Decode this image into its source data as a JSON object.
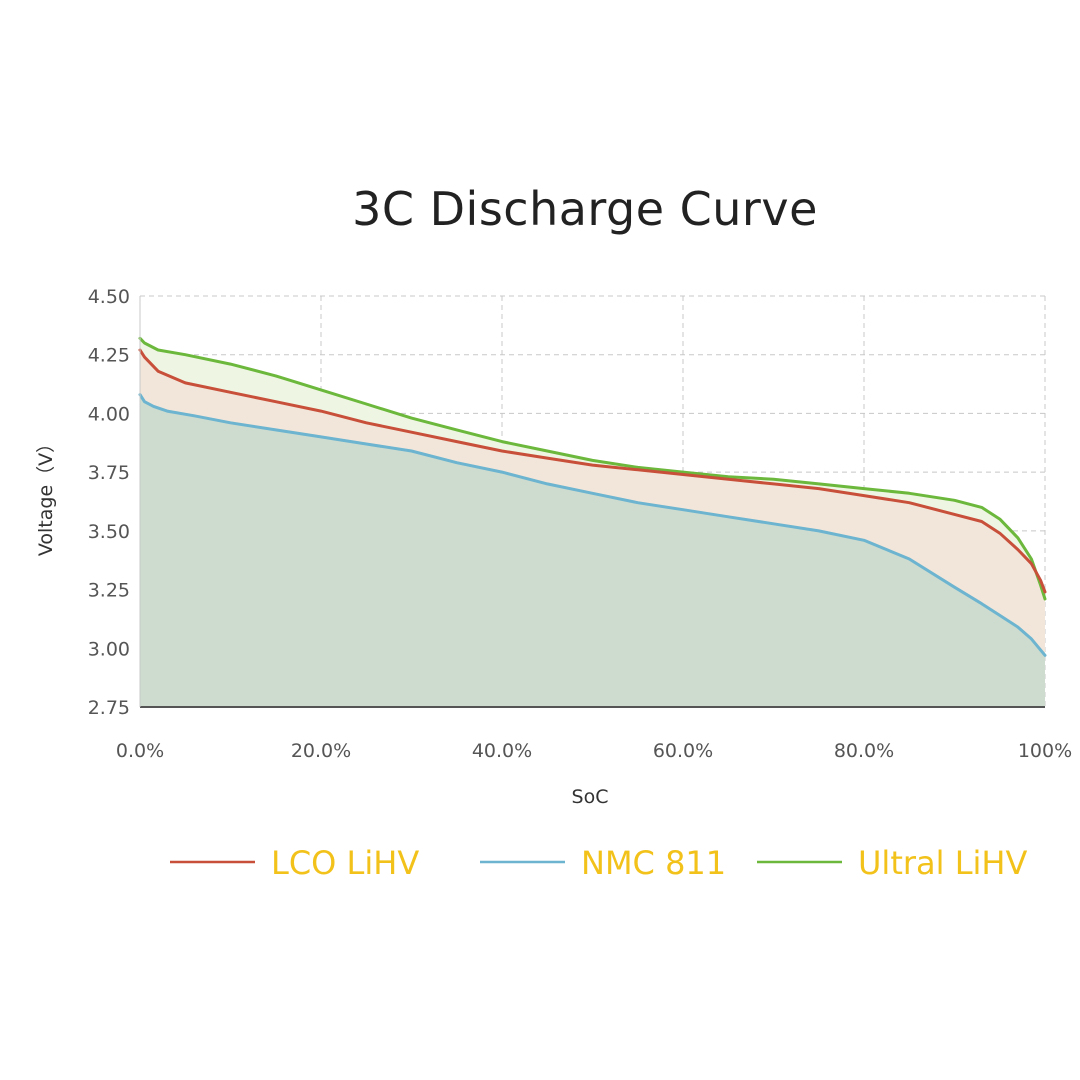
{
  "chart_data": {
    "type": "area",
    "title": "3C Discharge Curve",
    "xlabel": "SoC",
    "ylabel": "Voltage（V）",
    "x_tick_labels": [
      "0.0%",
      "20.0%",
      "40.0%",
      "60.0%",
      "80.0%",
      "100%"
    ],
    "y_tick_labels": [
      "4.50",
      "4.25",
      "4.00",
      "3.75",
      "3.50",
      "3.25",
      "3.00",
      "2.75"
    ],
    "xlim": [
      0,
      100
    ],
    "ylim": [
      2.75,
      4.5
    ],
    "grid": true,
    "legend_position": "bottom",
    "series": [
      {
        "name": "Ultral LiHV",
        "color": "#6cb83c",
        "fill": "#eef6e3",
        "x": [
          0,
          0.5,
          2,
          5,
          10,
          15,
          20,
          25,
          30,
          35,
          40,
          45,
          50,
          55,
          60,
          65,
          70,
          75,
          80,
          85,
          90,
          93,
          95,
          97,
          98.5,
          99.5,
          100
        ],
        "y": [
          4.32,
          4.3,
          4.27,
          4.25,
          4.21,
          4.16,
          4.1,
          4.04,
          3.98,
          3.93,
          3.88,
          3.84,
          3.8,
          3.77,
          3.75,
          3.73,
          3.72,
          3.7,
          3.68,
          3.66,
          3.63,
          3.6,
          3.55,
          3.47,
          3.38,
          3.27,
          3.21
        ]
      },
      {
        "name": "LCO LiHV",
        "color": "#c8503a",
        "fill": "#f2e6da",
        "x": [
          0,
          0.5,
          2,
          5,
          10,
          15,
          20,
          25,
          30,
          35,
          40,
          45,
          50,
          55,
          60,
          65,
          70,
          75,
          80,
          85,
          90,
          93,
          95,
          97,
          98.5,
          99.5,
          100
        ],
        "y": [
          4.27,
          4.24,
          4.18,
          4.13,
          4.09,
          4.05,
          4.01,
          3.96,
          3.92,
          3.88,
          3.84,
          3.81,
          3.78,
          3.76,
          3.74,
          3.72,
          3.7,
          3.68,
          3.65,
          3.62,
          3.57,
          3.54,
          3.49,
          3.42,
          3.36,
          3.29,
          3.24
        ]
      },
      {
        "name": "NMC 811",
        "color": "#6cb4cf",
        "fill": "#cddccf",
        "x": [
          0,
          0.5,
          1.5,
          3,
          6,
          10,
          15,
          20,
          25,
          30,
          35,
          40,
          45,
          50,
          55,
          60,
          65,
          70,
          75,
          80,
          85,
          90,
          93,
          95,
          97,
          98.5,
          100
        ],
        "y": [
          4.08,
          4.05,
          4.03,
          4.01,
          3.99,
          3.96,
          3.93,
          3.9,
          3.87,
          3.84,
          3.79,
          3.75,
          3.7,
          3.66,
          3.62,
          3.59,
          3.56,
          3.53,
          3.5,
          3.46,
          3.38,
          3.26,
          3.19,
          3.14,
          3.09,
          3.04,
          2.97
        ]
      }
    ]
  }
}
